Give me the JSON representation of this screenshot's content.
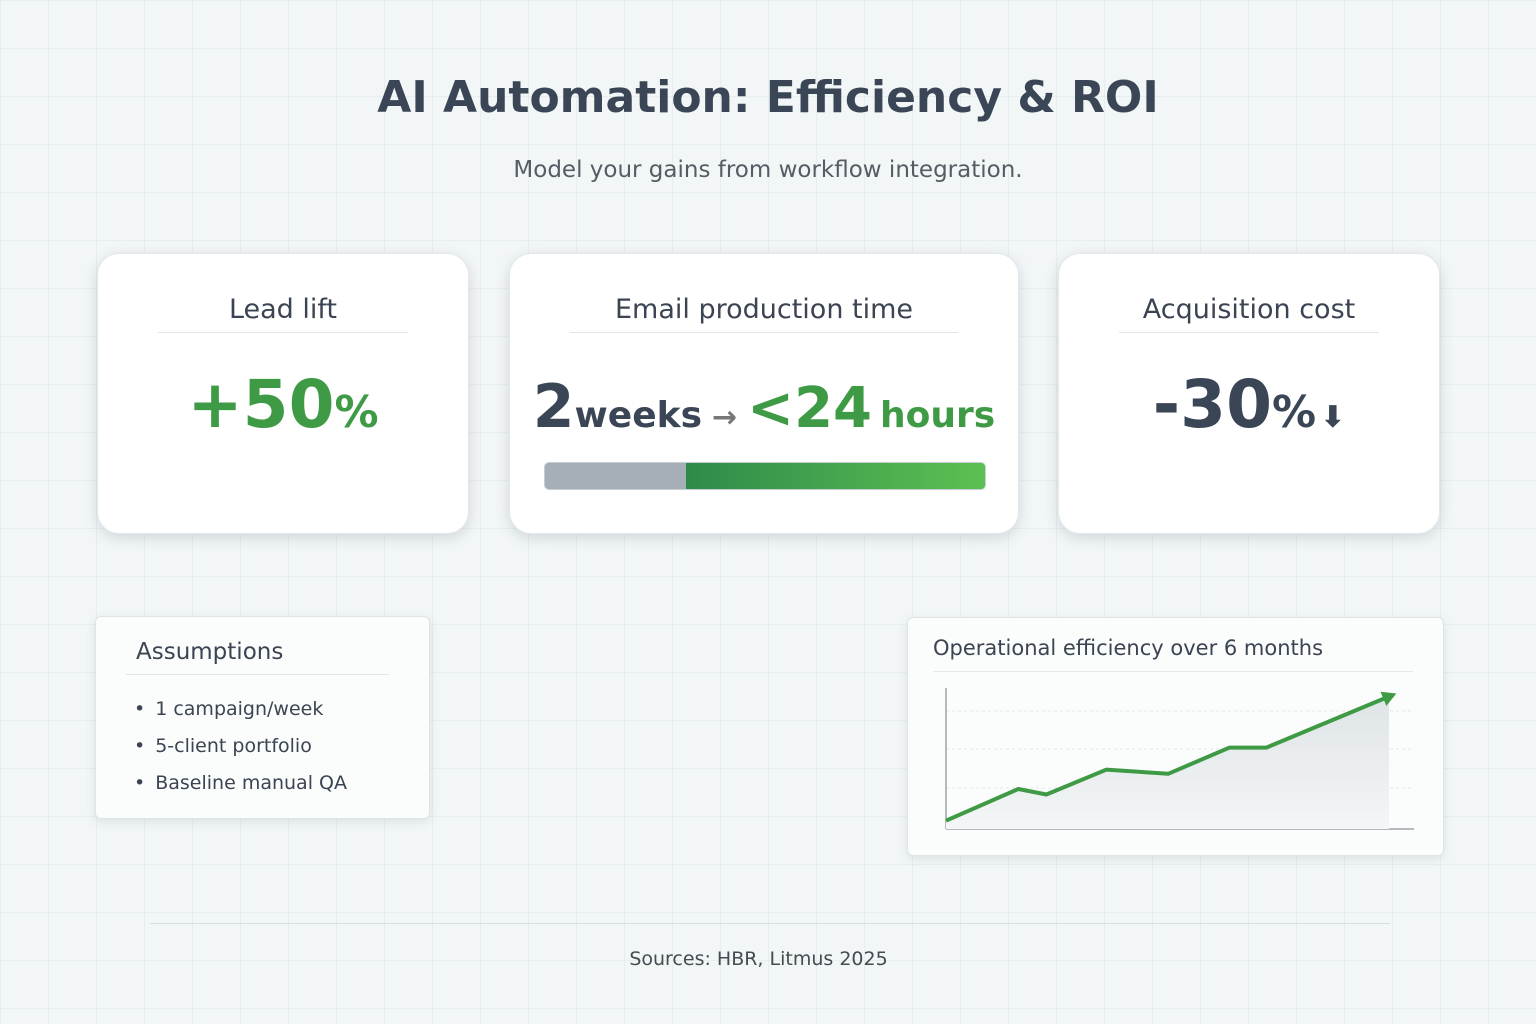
{
  "header": {
    "title": "AI Automation: Efficiency & ROI",
    "subtitle": "Model your gains from workflow integration."
  },
  "cards": [
    {
      "label": "Lead lift",
      "value": "+50",
      "unit": "%"
    },
    {
      "label": "Email production time",
      "from_value": "2",
      "from_unit": "weeks",
      "to_value": "<24",
      "to_unit": "hours"
    },
    {
      "label": "Acquisition cost",
      "value": "-30",
      "unit": "%"
    }
  ],
  "assumptions": {
    "title": "Assumptions",
    "items": [
      "1 campaign/week",
      "5-client portfolio",
      "Baseline manual QA"
    ]
  },
  "efficiency_chart": {
    "type": "line",
    "title": "Operational efficiency over 6 months",
    "x": [
      0,
      0.98,
      1.36,
      2.17,
      3.01,
      3.84,
      4.34,
      6
    ],
    "values": [
      6,
      29,
      25,
      43,
      40,
      59,
      59,
      96
    ],
    "xlim": [
      0,
      6
    ],
    "ylim": [
      0,
      100
    ],
    "color": "#3f9a45"
  },
  "footer": {
    "sources": "Sources: HBR, Litmus 2025"
  }
}
